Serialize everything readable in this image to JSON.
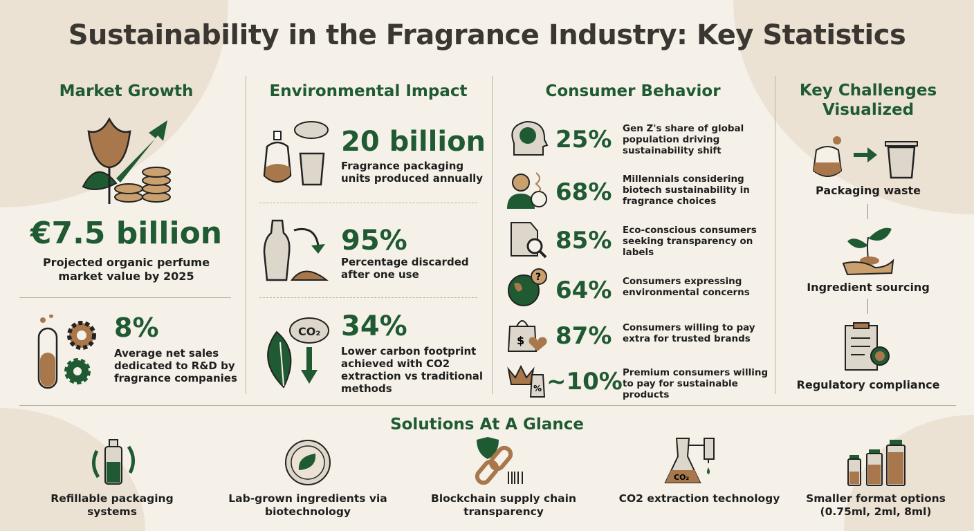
{
  "title": "Sustainability in the Fragrance Industry: Key Statistics",
  "colors": {
    "accent_green": "#1f5a33",
    "brown": "#a8784c",
    "background": "#f5f1e8"
  },
  "market_growth": {
    "heading": "Market Growth",
    "stat1": {
      "value": "€7.5 billion",
      "label": "Projected organic perfume market value by 2025",
      "icon": "tulip-coins-growth-icon"
    },
    "stat2": {
      "value": "8%",
      "label": "Average net sales dedicated to R&D by fragrance companies",
      "icon": "test-tube-gears-icon"
    }
  },
  "environmental_impact": {
    "heading": "Environmental Impact",
    "stats": [
      {
        "value": "20 billion",
        "label": "Fragrance packaging units produced annually",
        "icon": "perfume-bottle-trash-icon"
      },
      {
        "value": "95%",
        "label": "Percentage discarded after one use",
        "icon": "broken-bottle-discard-icon"
      },
      {
        "value": "34%",
        "label": "Lower carbon footprint achieved with CO2 extraction vs traditional methods",
        "icon": "leaf-co2-icon"
      }
    ]
  },
  "consumer_behavior": {
    "heading": "Consumer Behavior",
    "stats": [
      {
        "value": "25%",
        "label": "Gen Z's share of global population driving sustainability shift",
        "icon": "head-globe-icon"
      },
      {
        "value": "68%",
        "label": "Millennials considering biotech sustainability in fragrance choices",
        "icon": "person-dna-icon"
      },
      {
        "value": "85%",
        "label": "Eco-conscious consumers seeking transparency on labels",
        "icon": "label-magnifier-icon"
      },
      {
        "value": "64%",
        "label": "Consumers expressing environmental concerns",
        "icon": "globe-question-icon"
      },
      {
        "value": "87%",
        "label": "Consumers willing to pay extra for trusted brands",
        "icon": "shopping-bag-heart-icon"
      },
      {
        "value": "~10%",
        "label": "Premium consumers willing to pay for sustainable products",
        "icon": "crown-price-tag-icon"
      }
    ]
  },
  "key_challenges": {
    "heading": "Key Challenges Visualized",
    "items": [
      {
        "label": "Packaging waste",
        "icon": "bottle-to-trash-icon"
      },
      {
        "label": "Ingredient sourcing",
        "icon": "hand-plant-icon"
      },
      {
        "label": "Regulatory compliance",
        "icon": "clipboard-badge-icon"
      }
    ]
  },
  "solutions": {
    "heading": "Solutions At A Glance",
    "items": [
      {
        "label": "Refillable packaging systems",
        "icon": "refill-bottle-icon"
      },
      {
        "label": "Lab-grown ingredients via biotechnology",
        "icon": "petri-dish-leaf-icon"
      },
      {
        "label": "Blockchain supply chain transparency",
        "icon": "chain-shield-barcode-icon"
      },
      {
        "label": "CO2 extraction technology",
        "icon": "flask-co2-icon"
      },
      {
        "label": "Smaller format options (0.75ml, 2ml, 8ml)",
        "icon": "small-bottles-icon"
      }
    ]
  }
}
